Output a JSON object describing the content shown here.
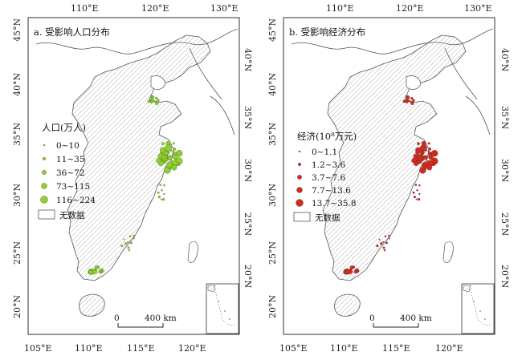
{
  "panels": [
    {
      "id": "a",
      "title": "a. 受影响人口分布",
      "top_lon_labels": [
        "110°E",
        "120°E",
        "130°E"
      ],
      "bottom_lon_labels": [
        "105°E",
        "110°E",
        "115°E",
        "120°E"
      ],
      "left_lat_labels": [
        "45°N",
        "40°N",
        "35°N",
        "30°N",
        "25°N",
        "20°N"
      ],
      "right_lat_labels": [
        "40°N",
        "35°N",
        "30°N",
        "25°N",
        "20°N"
      ],
      "legend_title": "人口(万人)",
      "legend_items": [
        "0~10",
        "11~35",
        "36~72",
        "73~115",
        "116~224"
      ],
      "no_data_label": "无数据",
      "symbol_color": "#8ed12a",
      "scale_start": "0",
      "scale_end": "400 km"
    },
    {
      "id": "b",
      "title": "b. 受影响经济分布",
      "top_lon_labels": [
        "110°E",
        "120°E",
        "130°E"
      ],
      "bottom_lon_labels": [
        "105°E",
        "110°E",
        "115°E",
        "120°E"
      ],
      "left_lat_labels": [
        "45°N",
        "40°N",
        "35°N",
        "30°N",
        "25°N",
        "20°N"
      ],
      "right_lat_labels": [
        "40°N",
        "35°N",
        "30°N",
        "25°N",
        "20°N"
      ],
      "legend_title": "经济(10⁸万元)",
      "legend_items": [
        "0~1.1",
        "1.2~3.6",
        "3.7~7.6",
        "7.7~13.6",
        "13.7~35.8"
      ],
      "no_data_label": "无数据",
      "symbol_color": "#d42a1e",
      "scale_start": "0",
      "scale_end": "400 km"
    }
  ]
}
